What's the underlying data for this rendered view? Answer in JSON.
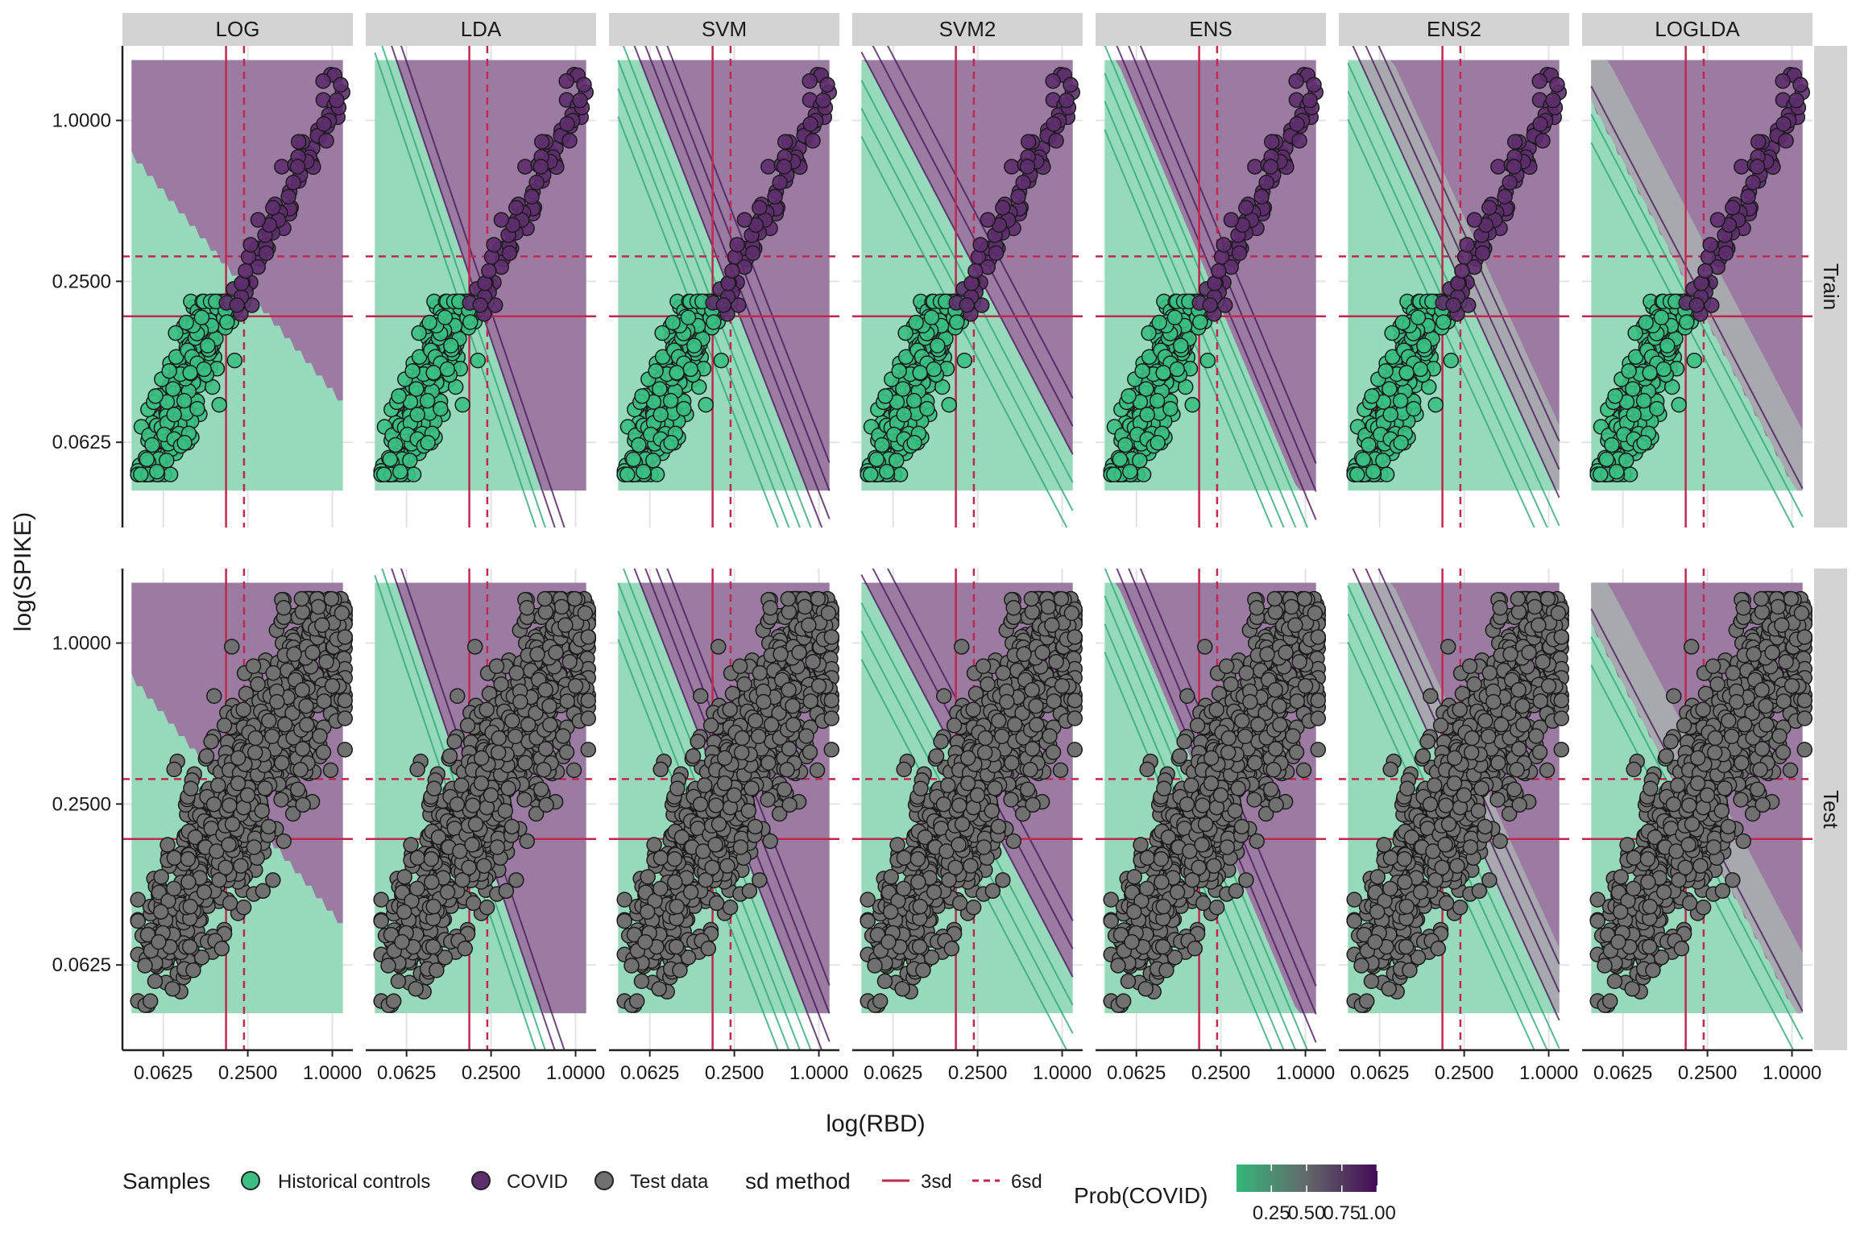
{
  "chart_data": {
    "type": "scatter",
    "x_label": "log(RBD)",
    "y_label": "log(SPIKE)",
    "x_scale": "log2",
    "y_scale": "log2",
    "x_ticks": [
      "0.0625",
      "0.2500",
      "1.0000"
    ],
    "y_ticks": [
      "0.0625",
      "0.2500",
      "1.0000"
    ],
    "xlim": [
      0.032,
      1.4
    ],
    "ylim": [
      0.03,
      1.9
    ],
    "grid": true,
    "columns": [
      "LOG",
      "LDA",
      "SVM",
      "SVM2",
      "ENS",
      "ENS2",
      "LOGLDA"
    ],
    "rows": [
      "Train",
      "Test"
    ],
    "thresholds": {
      "3sd": {
        "x": 0.175,
        "y": 0.185
      },
      "6sd": {
        "x": 0.235,
        "y": 0.31
      }
    },
    "fill_colors": {
      "low": "#97dabb",
      "high": "#9b7ba2",
      "mid": "#a8a9ae"
    },
    "series": [
      {
        "name": "Historical controls",
        "color": "#3bbf82",
        "description": "clustered around RBD 0.04–0.20, SPIKE 0.04–0.21"
      },
      {
        "name": "COVID",
        "color": "#5e2d6d",
        "description": "RBD 0.2–1.2, SPIKE 0.19–1.4 along a diagonal band"
      },
      {
        "name": "Test data",
        "color": "#707070",
        "description": "diagonal band from (0.04,0.04) to (1.2,1.4)"
      }
    ],
    "legend": {
      "position": "bottom",
      "samples_title": "Samples",
      "samples": [
        "Historical controls",
        "COVID",
        "Test data"
      ],
      "sd_title": "sd method",
      "sd": [
        "3sd",
        "6sd"
      ],
      "prob_title": "Prob(COVID)",
      "prob_ticks": [
        "0.25",
        "0.50",
        "0.75",
        "1.00"
      ]
    }
  }
}
